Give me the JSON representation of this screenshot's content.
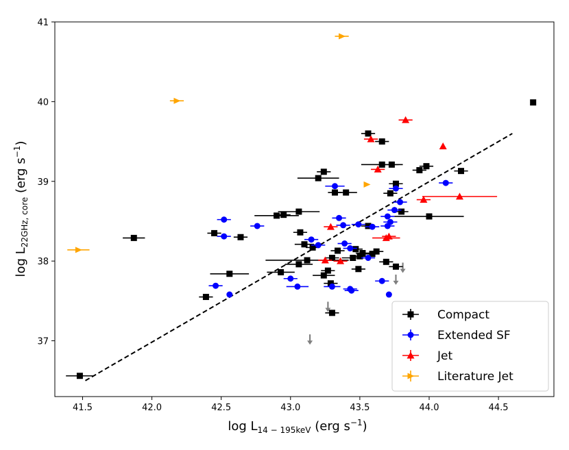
{
  "chart_data": {
    "type": "scatter",
    "title": "",
    "xlabel": "log L",
    "xlabel_sub": "14 − 195keV",
    "xlabel_units": " (erg s",
    "ylabel": "log L",
    "ylabel_sub": "22GHz, core",
    "ylabel_units": " (erg s",
    "units_exp": "−1",
    "units_close": ")",
    "xlim": [
      41.3,
      44.9
    ],
    "ylim": [
      36.3,
      41.0
    ],
    "xticks": [
      "41.5",
      "42.0",
      "42.5",
      "43.0",
      "43.5",
      "44.0",
      "44.5"
    ],
    "yticks": [
      "37",
      "38",
      "39",
      "40",
      "41"
    ],
    "fit_line": {
      "x": [
        41.52,
        44.6
      ],
      "y": [
        36.5,
        39.6
      ],
      "style": "dashed"
    },
    "legend": [
      {
        "label": "Compact",
        "color": "#000000",
        "marker": "square"
      },
      {
        "label": "Extended SF",
        "color": "#0000ff",
        "marker": "circle"
      },
      {
        "label": "Jet",
        "color": "#ff0000",
        "marker": "triangle"
      },
      {
        "label": "Literature Jet",
        "color": "#ffa500",
        "marker": "right-triangle"
      }
    ],
    "series": [
      {
        "name": "Compact",
        "color": "#000000",
        "marker": "square",
        "points": [
          [
            41.48,
            36.56,
            0.1
          ],
          [
            41.87,
            38.29,
            0.08
          ],
          [
            42.39,
            37.55,
            0.05
          ],
          [
            42.45,
            38.35,
            0.05
          ],
          [
            42.56,
            37.84,
            0.14
          ],
          [
            42.64,
            38.3,
            0.05
          ],
          [
            42.9,
            38.57,
            0.16
          ],
          [
            42.95,
            38.58,
            0.05
          ],
          [
            42.93,
            37.86,
            0.1
          ],
          [
            43.06,
            38.62,
            0.15
          ],
          [
            43.07,
            38.36,
            0.05
          ],
          [
            43.06,
            37.96,
            0.1
          ],
          [
            43.1,
            38.21,
            0.07
          ],
          [
            43.12,
            38.01,
            0.3
          ],
          [
            43.16,
            38.17,
            0.05
          ],
          [
            43.2,
            39.04,
            0.15
          ],
          [
            43.24,
            39.12,
            0.05
          ],
          [
            43.24,
            37.82,
            0.08
          ],
          [
            43.27,
            37.88,
            0.05
          ],
          [
            43.29,
            37.72,
            0.05
          ],
          [
            43.3,
            37.35,
            0.05
          ],
          [
            43.3,
            38.04,
            0.05
          ],
          [
            43.32,
            38.86,
            0.05
          ],
          [
            43.34,
            38.13,
            0.05
          ],
          [
            43.4,
            38.86,
            0.08
          ],
          [
            43.45,
            38.04,
            0.08
          ],
          [
            43.47,
            38.15,
            0.05
          ],
          [
            43.49,
            37.9,
            0.05
          ],
          [
            43.5,
            38.06,
            0.05
          ],
          [
            43.52,
            38.1,
            0.05
          ],
          [
            43.56,
            38.44,
            0.05
          ],
          [
            43.56,
            39.6,
            0.05
          ],
          [
            43.59,
            38.09,
            0.05
          ],
          [
            43.62,
            38.12,
            0.05
          ],
          [
            43.66,
            39.21,
            0.15
          ],
          [
            43.66,
            39.5,
            0.05
          ],
          [
            43.69,
            37.99,
            0.05
          ],
          [
            43.72,
            38.85,
            0.05
          ],
          [
            43.73,
            39.21,
            0.05
          ],
          [
            43.76,
            38.97,
            0.05
          ],
          [
            43.76,
            37.93,
            0.05
          ],
          [
            43.8,
            38.62,
            0.05
          ],
          [
            43.93,
            39.14,
            0.05
          ],
          [
            43.98,
            39.19,
            0.05
          ],
          [
            44.0,
            38.56,
            0.25
          ],
          [
            44.23,
            39.13,
            0.05
          ],
          [
            44.75,
            39.99,
            0.0
          ]
        ]
      },
      {
        "name": "Extended SF",
        "color": "#0000ff",
        "marker": "circle",
        "points": [
          [
            42.46,
            37.69,
            0.05
          ],
          [
            42.52,
            38.52,
            0.05
          ],
          [
            42.52,
            38.31,
            0.05
          ],
          [
            42.56,
            37.58,
            0.0
          ],
          [
            42.76,
            38.44,
            0.05
          ],
          [
            43.0,
            37.78,
            0.05
          ],
          [
            43.05,
            37.68,
            0.08
          ],
          [
            43.15,
            38.27,
            0.05
          ],
          [
            43.2,
            38.2,
            0.05
          ],
          [
            43.3,
            37.68,
            0.06
          ],
          [
            43.32,
            38.94,
            0.07
          ],
          [
            43.35,
            38.54,
            0.05
          ],
          [
            43.38,
            38.45,
            0.05
          ],
          [
            43.39,
            38.22,
            0.05
          ],
          [
            43.43,
            38.16,
            0.05
          ],
          [
            43.43,
            37.65,
            0.05
          ],
          [
            43.44,
            37.63,
            0.05
          ],
          [
            43.49,
            38.46,
            0.05
          ],
          [
            43.56,
            38.04,
            0.05
          ],
          [
            43.59,
            38.43,
            0.05
          ],
          [
            43.66,
            37.75,
            0.05
          ],
          [
            43.7,
            38.56,
            0.05
          ],
          [
            43.7,
            38.44,
            0.05
          ],
          [
            43.72,
            38.49,
            0.05
          ],
          [
            43.71,
            37.58,
            0.0
          ],
          [
            43.75,
            38.64,
            0.05
          ],
          [
            43.76,
            38.91,
            0.05
          ],
          [
            43.79,
            38.74,
            0.05
          ],
          [
            44.12,
            38.98,
            0.05
          ]
        ]
      },
      {
        "name": "Jet",
        "color": "#ff0000",
        "marker": "triangle",
        "points": [
          [
            43.25,
            38.01,
            0.05
          ],
          [
            43.29,
            38.43,
            0.05
          ],
          [
            43.36,
            38.0,
            0.05
          ],
          [
            43.58,
            39.53,
            0.05
          ],
          [
            43.63,
            39.15,
            0.05
          ],
          [
            43.69,
            38.29,
            0.1
          ],
          [
            43.71,
            38.31,
            0.05
          ],
          [
            43.83,
            39.77,
            0.05
          ],
          [
            43.96,
            38.77,
            0.05
          ],
          [
            44.1,
            39.44,
            0.0
          ],
          [
            44.22,
            38.81,
            0.27
          ]
        ]
      },
      {
        "name": "Literature Jet",
        "color": "#ffa500",
        "marker": "right-triangle",
        "points": [
          [
            41.47,
            38.14,
            0.08
          ],
          [
            42.18,
            40.01,
            0.05
          ],
          [
            43.37,
            40.82,
            0.05
          ],
          [
            43.55,
            38.96,
            0.0
          ]
        ]
      }
    ],
    "upper_limits": [
      {
        "color": "#808080",
        "points": [
          [
            43.14,
            37.02
          ],
          [
            43.27,
            37.43
          ],
          [
            43.76,
            37.77
          ],
          [
            43.81,
            37.92
          ]
        ]
      }
    ]
  }
}
